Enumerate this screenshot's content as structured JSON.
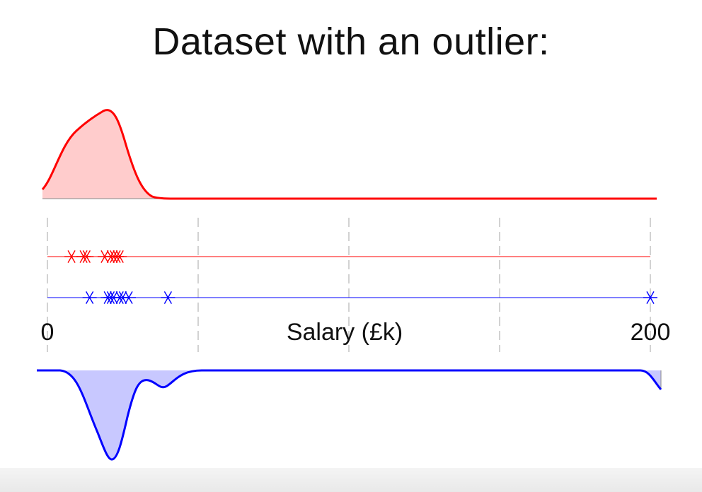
{
  "page": {
    "title": "Dataset with an outlier:"
  },
  "chart_data": {
    "type": "scatter",
    "title": "Dataset with an outlier:",
    "xlabel": "Salary (£k)",
    "ylabel": "",
    "xlim": [
      0,
      200
    ],
    "x_tick_labels": [
      {
        "value": 0,
        "label": "0"
      },
      {
        "value": 200,
        "label": "200"
      }
    ],
    "grid_x": [
      0,
      50,
      100,
      150,
      200
    ],
    "grid": true,
    "series": [
      {
        "color": "#ff0000",
        "marker": "asterisk",
        "values": [
          8,
          12,
          13,
          19,
          21,
          22,
          23,
          24
        ]
      },
      {
        "color": "#0000ff",
        "marker": "asterisk",
        "values": [
          14,
          20,
          21,
          22,
          24,
          25,
          27,
          40,
          200
        ]
      }
    ],
    "densities": [
      {
        "color": "#ff0000",
        "fill": "#ffcccc",
        "direction": "up"
      },
      {
        "color": "#0000ff",
        "fill": "#c8c8ff",
        "direction": "down"
      }
    ]
  }
}
